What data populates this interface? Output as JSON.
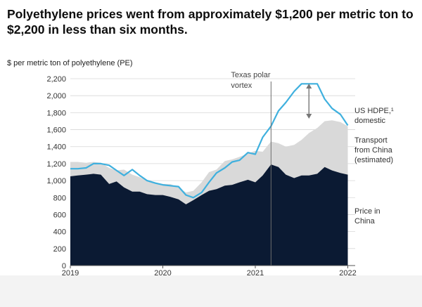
{
  "title": "Polyethylene prices went from approximately $1,200 per metric ton to $2,200 in less than six months.",
  "chart_data": {
    "type": "area",
    "title": "Polyethylene prices went from approximately $1,200 per metric ton to $2,200 in less than six months.",
    "ylabel": "$ per metric ton of polyethylene (PE)",
    "ylim": [
      0,
      2200
    ],
    "yticks": [
      0,
      200,
      400,
      600,
      800,
      1000,
      1200,
      1400,
      1600,
      1800,
      2000,
      2200
    ],
    "ytick_labels": [
      "0",
      "200",
      "400",
      "600",
      "800",
      "1,000",
      "1,200",
      "1,400",
      "1,600",
      "1,800",
      "2,000",
      "2,200"
    ],
    "xlim": [
      2019.0,
      2022.08
    ],
    "xticks": [
      2019,
      2020,
      2021,
      2022
    ],
    "xtick_labels": [
      "2019",
      "2020",
      "2021",
      "2022"
    ],
    "grid": true,
    "x": [
      2019.0,
      2019.08,
      2019.17,
      2019.25,
      2019.33,
      2019.42,
      2019.5,
      2019.58,
      2019.67,
      2019.75,
      2019.83,
      2019.92,
      2020.0,
      2020.08,
      2020.17,
      2020.25,
      2020.33,
      2020.42,
      2020.5,
      2020.58,
      2020.67,
      2020.75,
      2020.83,
      2020.92,
      2021.0,
      2021.08,
      2021.17,
      2021.25,
      2021.33,
      2021.42,
      2021.5,
      2021.58,
      2021.67,
      2021.75,
      2021.83,
      2021.92,
      2022.0
    ],
    "series": [
      {
        "name": "Price in China",
        "kind": "area",
        "values": [
          1050,
          1060,
          1070,
          1080,
          1070,
          960,
          990,
          920,
          870,
          870,
          840,
          830,
          830,
          810,
          780,
          720,
          770,
          830,
          880,
          900,
          940,
          950,
          980,
          1010,
          980,
          1060,
          1190,
          1160,
          1070,
          1030,
          1060,
          1060,
          1080,
          1160,
          1120,
          1090,
          1070
        ]
      },
      {
        "name": "Transport from China (estimated)",
        "kind": "area-on-top",
        "values": [
          1220,
          1220,
          1210,
          1220,
          1210,
          1150,
          1120,
          1130,
          1070,
          1040,
          1000,
          980,
          960,
          960,
          920,
          860,
          880,
          980,
          1100,
          1130,
          1230,
          1250,
          1280,
          1320,
          1350,
          1340,
          1460,
          1440,
          1400,
          1420,
          1480,
          1560,
          1620,
          1700,
          1710,
          1690,
          1640
        ]
      },
      {
        "name": "US HDPE,¹ domestic",
        "kind": "line",
        "values": [
          1140,
          1140,
          1150,
          1200,
          1200,
          1180,
          1120,
          1060,
          1130,
          1060,
          1000,
          970,
          950,
          940,
          930,
          830,
          800,
          860,
          980,
          1090,
          1150,
          1220,
          1240,
          1330,
          1310,
          1510,
          1640,
          1820,
          1920,
          2050,
          2140,
          2140,
          2140,
          1960,
          1850,
          1780,
          1650
        ]
      }
    ],
    "annotations": [
      {
        "text_lines": [
          "Texas polar",
          "vortex"
        ],
        "x": 2021.17,
        "kind": "vertical-line"
      },
      {
        "kind": "double-arrow",
        "x": 2021.58,
        "y_from": 1720,
        "y_to": 2150
      }
    ],
    "legend_placement": "right-inline",
    "legend_labels": [
      {
        "series": 2,
        "lines": [
          "US HDPE,¹",
          "domestic"
        ]
      },
      {
        "series": 1,
        "lines": [
          "Transport",
          "from China",
          "(estimated)"
        ]
      },
      {
        "series": 0,
        "lines": [
          "Price in",
          "China"
        ]
      }
    ],
    "colors": {
      "china": "#0b1a33",
      "transport": "#d9d9d9",
      "us": "#3fb0de",
      "grid": "#d7d7d7",
      "vline": "#6d6d6d",
      "arrow": "#777777"
    }
  }
}
